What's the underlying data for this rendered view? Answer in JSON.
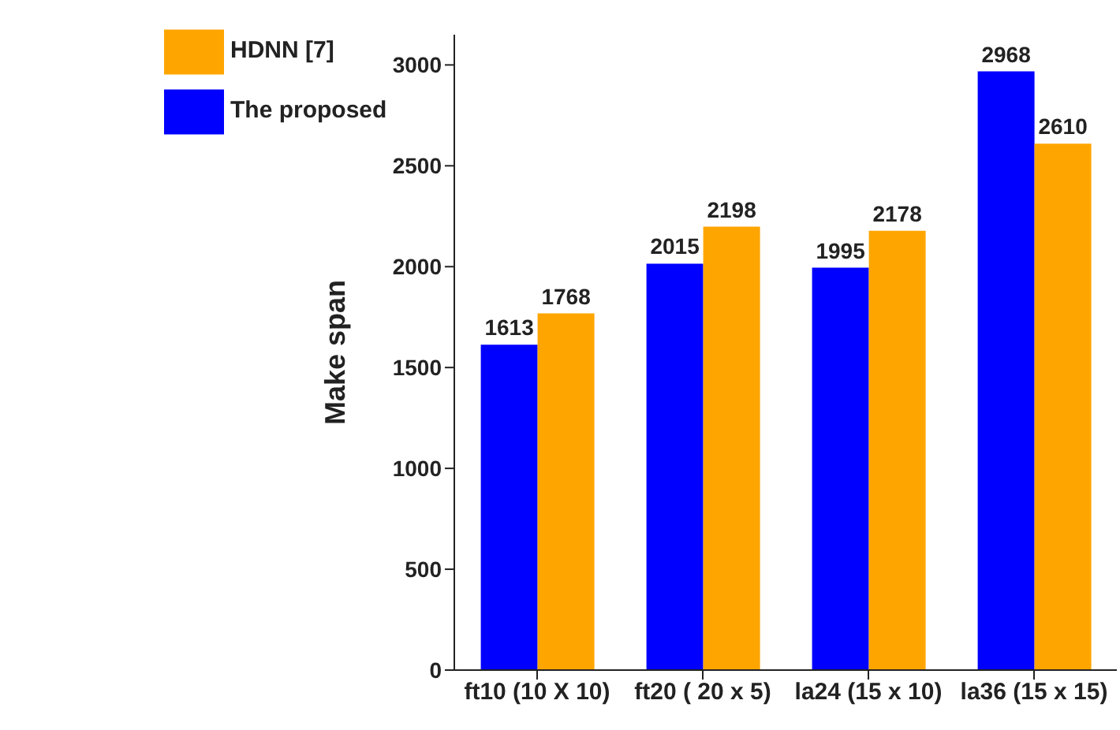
{
  "chart_data": {
    "type": "bar",
    "ylabel": "Make span",
    "categories": [
      "ft10 (10 X 10)",
      "ft20 ( 20 x 5)",
      "la24 (15 x 10)",
      "la36 (15 x 15)"
    ],
    "series": [
      {
        "name": "The proposed",
        "color": "#0000ff",
        "values": [
          1613,
          2015,
          1995,
          2968
        ]
      },
      {
        "name": "HDNN [7]",
        "color": "#ffa500",
        "values": [
          1768,
          2198,
          2178,
          2610
        ]
      }
    ],
    "ylim": [
      0,
      3150
    ],
    "yticks": [
      0,
      500,
      1000,
      1500,
      2000,
      2500,
      3000
    ],
    "grid": false,
    "legend": "top left",
    "data_labels": true
  }
}
